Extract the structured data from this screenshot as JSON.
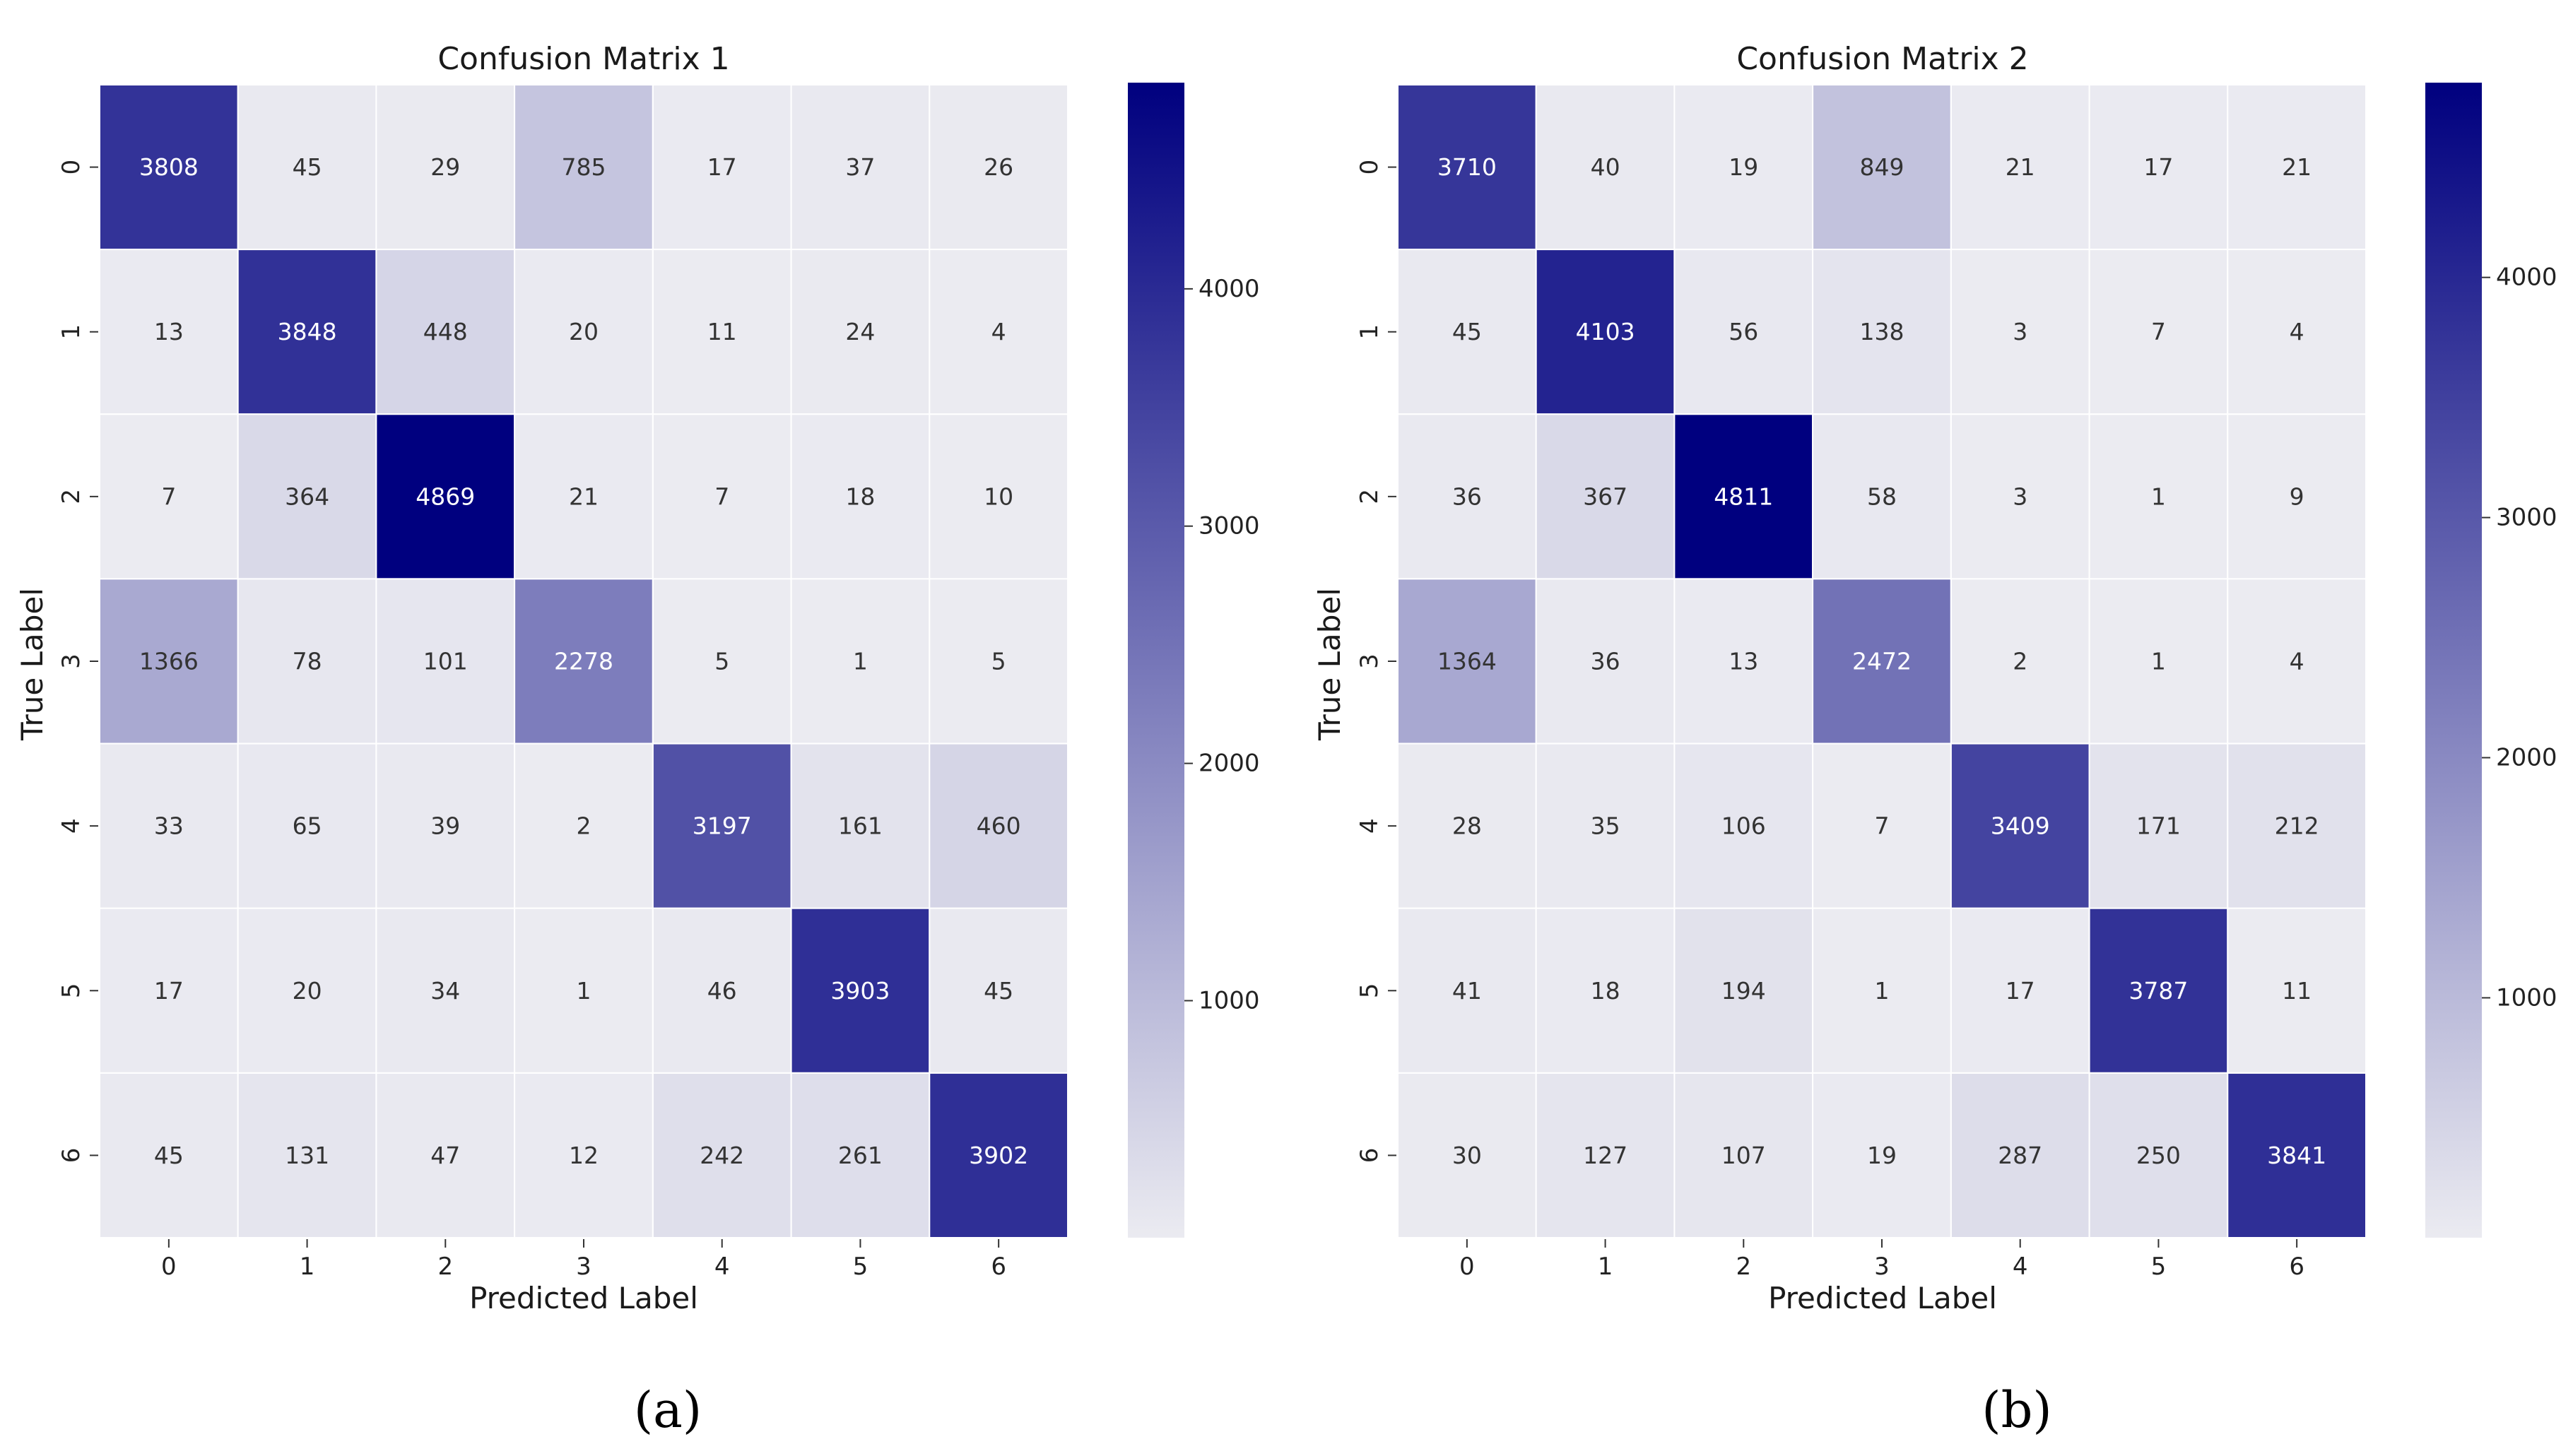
{
  "colors": {
    "low": "#ebebf1",
    "high": "#00007f",
    "text_dark": "#333333",
    "text_light": "#ffffff",
    "grid": "#ffffff"
  },
  "chart_data": [
    {
      "type": "heatmap",
      "title": "Confusion Matrix 1",
      "xlabel": "Predicted Label",
      "ylabel": "True Label",
      "x_categories": [
        "0",
        "1",
        "2",
        "3",
        "4",
        "5",
        "6"
      ],
      "y_categories": [
        "0",
        "1",
        "2",
        "3",
        "4",
        "5",
        "6"
      ],
      "values": [
        [
          3808,
          45,
          29,
          785,
          17,
          37,
          26
        ],
        [
          13,
          3848,
          448,
          20,
          11,
          24,
          4
        ],
        [
          7,
          364,
          4869,
          21,
          7,
          18,
          10
        ],
        [
          1366,
          78,
          101,
          2278,
          5,
          1,
          5
        ],
        [
          33,
          65,
          39,
          2,
          3197,
          161,
          460
        ],
        [
          17,
          20,
          34,
          1,
          46,
          3903,
          45
        ],
        [
          45,
          131,
          47,
          12,
          242,
          261,
          3902
        ]
      ],
      "colorbar": {
        "range": [
          1,
          4869
        ],
        "ticks": [
          1000,
          2000,
          3000,
          4000
        ]
      },
      "caption": "(a)"
    },
    {
      "type": "heatmap",
      "title": "Confusion Matrix 2",
      "xlabel": "Predicted Label",
      "ylabel": "True Label",
      "x_categories": [
        "0",
        "1",
        "2",
        "3",
        "4",
        "5",
        "6"
      ],
      "y_categories": [
        "0",
        "1",
        "2",
        "3",
        "4",
        "5",
        "6"
      ],
      "values": [
        [
          3710,
          40,
          19,
          849,
          21,
          17,
          21
        ],
        [
          45,
          4103,
          56,
          138,
          3,
          7,
          4
        ],
        [
          36,
          367,
          4811,
          58,
          3,
          1,
          9
        ],
        [
          1364,
          36,
          13,
          2472,
          2,
          1,
          4
        ],
        [
          28,
          35,
          106,
          7,
          3409,
          171,
          212
        ],
        [
          41,
          18,
          194,
          1,
          17,
          3787,
          11
        ],
        [
          30,
          127,
          107,
          19,
          287,
          250,
          3841
        ]
      ],
      "colorbar": {
        "range": [
          1,
          4811
        ],
        "ticks": [
          1000,
          2000,
          3000,
          4000
        ]
      },
      "caption": "(b)"
    }
  ]
}
